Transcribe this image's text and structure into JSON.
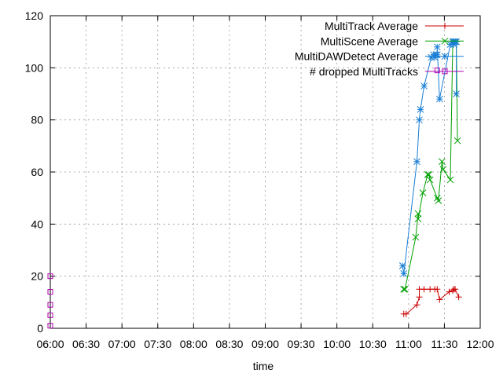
{
  "chart_data": {
    "type": "line",
    "xlabel": "time",
    "ylabel": "",
    "title": "",
    "xlim": [
      "06:00",
      "12:00"
    ],
    "ylim": [
      0,
      120
    ],
    "x_ticks": [
      "06:00",
      "06:30",
      "07:00",
      "07:30",
      "08:00",
      "08:30",
      "09:00",
      "09:30",
      "10:00",
      "10:30",
      "11:00",
      "11:30",
      "12:00"
    ],
    "y_ticks": [
      0,
      20,
      40,
      60,
      80,
      100,
      120
    ],
    "grid": true,
    "legend_position": "top-right",
    "series": [
      {
        "name": "MultiTrack Average",
        "color": "#cc0000",
        "marker": "plus",
        "x": [
          "10:56",
          "10:58",
          "11:07",
          "11:09",
          "11:09",
          "11:13",
          "11:18",
          "11:22",
          "11:24",
          "11:26",
          "11:34",
          "11:37",
          "11:38",
          "11:39",
          "11:42"
        ],
        "y": [
          5.5,
          5.5,
          9,
          12,
          15,
          15,
          15,
          15,
          15,
          11,
          14,
          14.5,
          15,
          15,
          12
        ]
      },
      {
        "name": "MultiScene Average",
        "color": "#00a000",
        "marker": "cross",
        "x": [
          "10:56",
          "10:57",
          "11:06",
          "11:08",
          "11:08",
          "11:12",
          "11:16",
          "11:17",
          "11:18",
          "11:24",
          "11:25",
          "11:28",
          "11:29",
          "11:35",
          "11:37",
          "11:38",
          "11:40",
          "11:41"
        ],
        "y": [
          15,
          15,
          35,
          44,
          42,
          52,
          59,
          59,
          57,
          50,
          49,
          64,
          61,
          57,
          110,
          110,
          110,
          72
        ]
      },
      {
        "name": "MultiDAWDetect Average",
        "color": "#1a7fd6",
        "marker": "star",
        "x": [
          "10:55",
          "10:56",
          "11:07",
          "11:09",
          "11:10",
          "11:13",
          "11:19",
          "11:21",
          "11:22",
          "11:23",
          "11:24",
          "11:24",
          "11:26",
          "11:35",
          "11:37",
          "11:38",
          "11:38",
          "11:39",
          "11:40",
          "11:40"
        ],
        "y": [
          24,
          21,
          64,
          80,
          84,
          93,
          104,
          105,
          104,
          105,
          105,
          108,
          88,
          109,
          110,
          110,
          109,
          110,
          110,
          90
        ]
      },
      {
        "name": "# dropped MultiTracks",
        "color": "#b000b0",
        "marker": "square",
        "x": [
          "06:00",
          "06:00",
          "06:00",
          "06:00",
          "06:00",
          "11:24"
        ],
        "y": [
          20,
          14,
          9,
          5,
          1,
          99
        ]
      }
    ]
  }
}
